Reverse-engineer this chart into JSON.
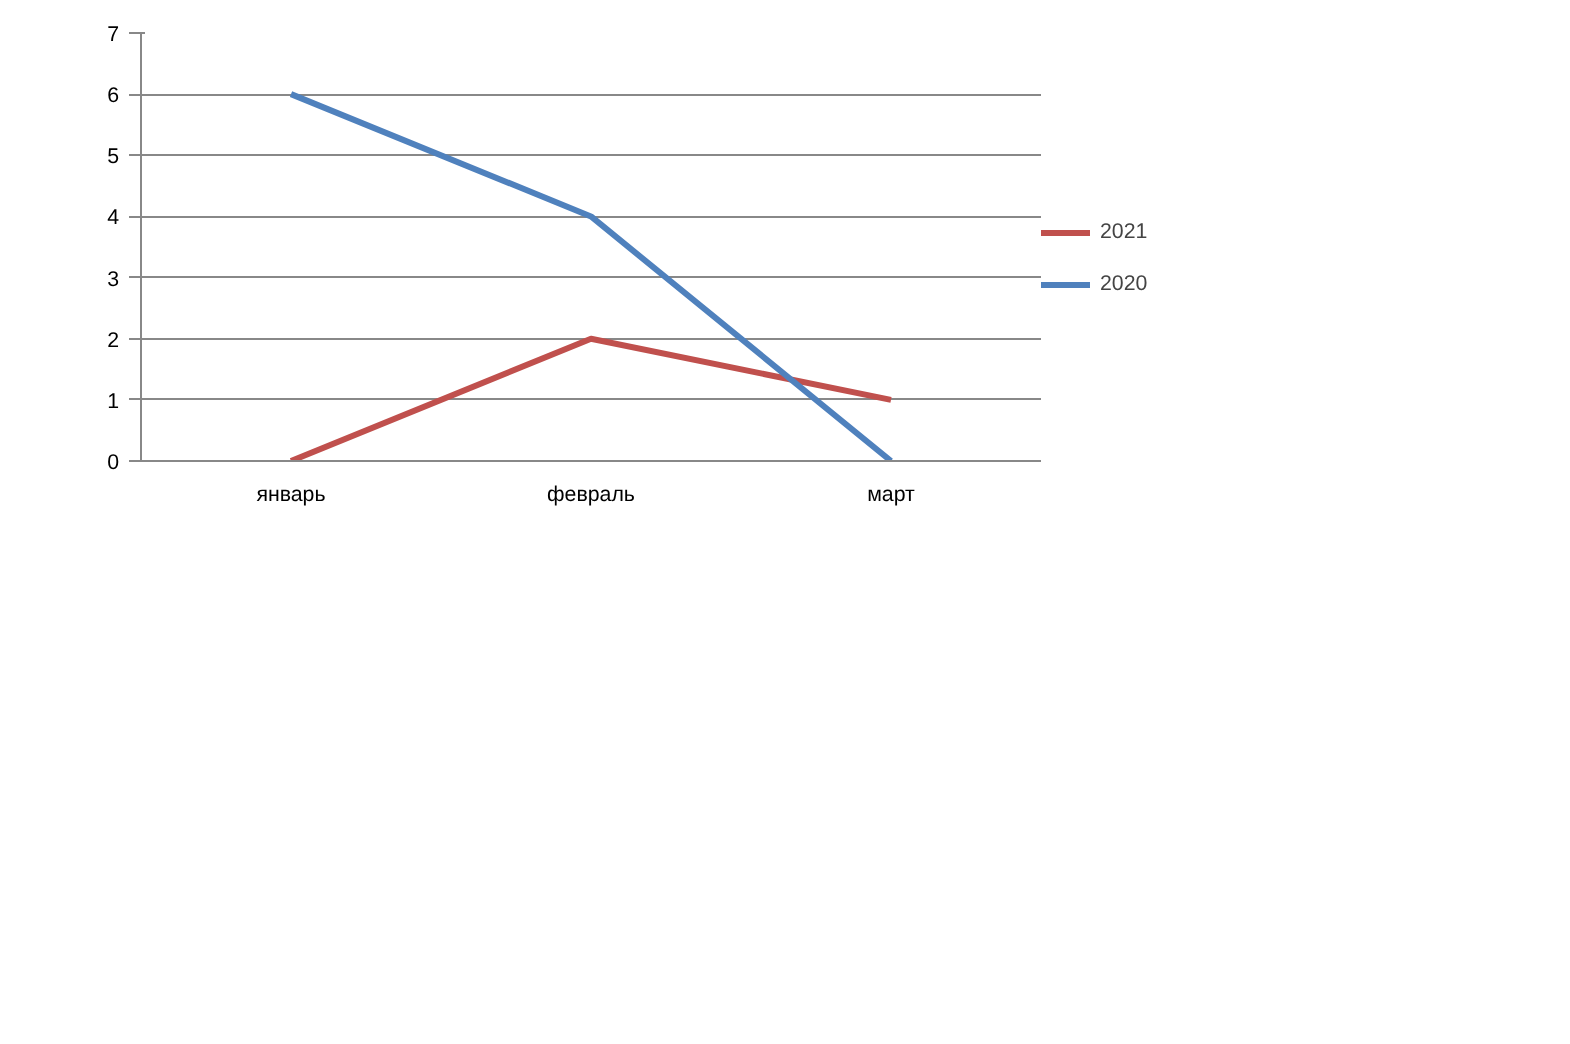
{
  "chart_data": {
    "type": "line",
    "categories": [
      "январь",
      "февраль",
      "март"
    ],
    "series": [
      {
        "name": "2021",
        "color": "#c0504d",
        "values": [
          0,
          2,
          1
        ]
      },
      {
        "name": "2020",
        "color": "#4f81bd",
        "values": [
          6,
          4,
          0
        ]
      }
    ],
    "ylim": [
      0,
      7
    ],
    "yticks": [
      0,
      1,
      2,
      3,
      4,
      5,
      6,
      7
    ],
    "grid": "y",
    "legend": "right",
    "marker": "none",
    "line_style": "solid"
  }
}
